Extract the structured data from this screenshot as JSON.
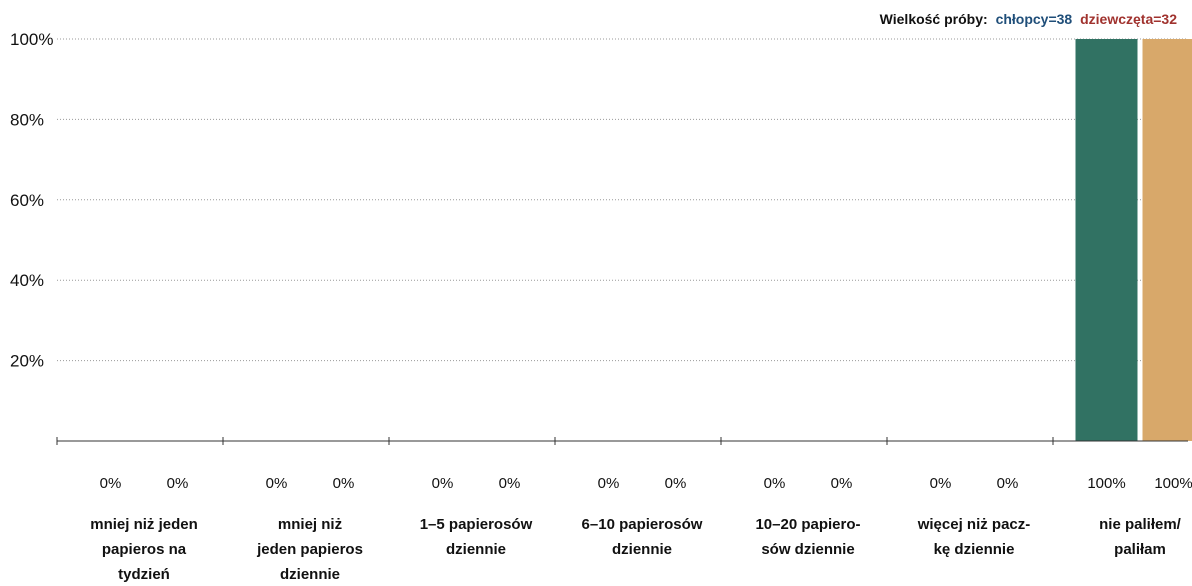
{
  "sample_size": {
    "label": "Wielkość próby:",
    "boys": "chłopcy=38",
    "girls": "dziewczęta=32"
  },
  "colors": {
    "boys": "#317263",
    "girls": "#d8a86a",
    "boys_text": "#1f4e79",
    "girls_text": "#a0322e",
    "grid": "#999999",
    "axis": "#333333"
  },
  "chart_data": {
    "type": "bar",
    "ylim": [
      0,
      100
    ],
    "yticks": [
      20,
      40,
      60,
      80,
      100
    ],
    "ytick_labels": [
      "20%",
      "40%",
      "60%",
      "80%",
      "100%"
    ],
    "grid": "horizontal-dotted",
    "categories": [
      [
        "mniej niż jeden",
        "papieros na",
        "tydzień"
      ],
      [
        "mniej niż",
        "jeden papieros",
        "dziennie"
      ],
      [
        "1–5 papierosów",
        "dziennie"
      ],
      [
        "6–10 papierosów",
        "dziennie"
      ],
      [
        "10–20 papiero-",
        "sów dziennie"
      ],
      [
        "więcej niż pacz-",
        "kę dziennie"
      ],
      [
        "nie paliłem/",
        "paliłam"
      ]
    ],
    "series": [
      {
        "values": [
          0,
          0,
          0,
          0,
          0,
          0,
          100
        ],
        "labels": [
          "0%",
          "0%",
          "0%",
          "0%",
          "0%",
          "0%",
          "100%"
        ]
      },
      {
        "values": [
          0,
          0,
          0,
          0,
          0,
          0,
          100
        ],
        "labels": [
          "0%",
          "0%",
          "0%",
          "0%",
          "0%",
          "0%",
          "100%"
        ]
      }
    ]
  }
}
